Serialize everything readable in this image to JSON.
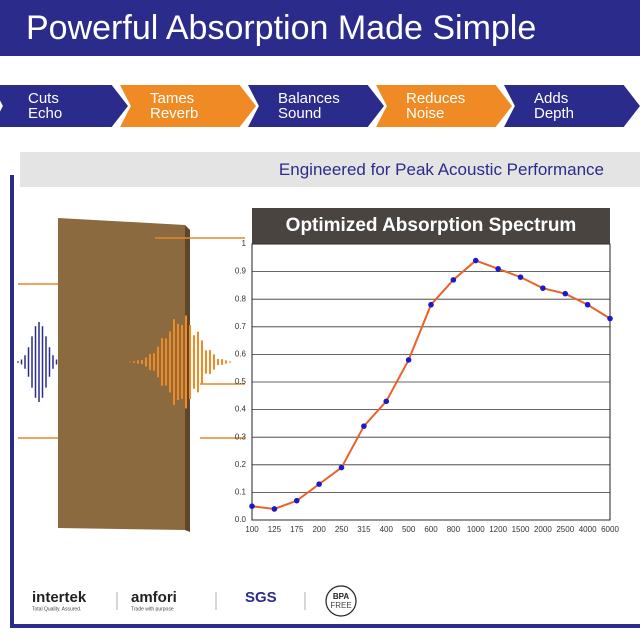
{
  "header": {
    "title": "Powerful Absorption Made Simple"
  },
  "features": [
    {
      "line1": "Cuts",
      "line2": "Echo"
    },
    {
      "line1": "Tames",
      "line2": "Reverb"
    },
    {
      "line1": "Balances",
      "line2": "Sound"
    },
    {
      "line1": "Reduces",
      "line2": "Noise"
    },
    {
      "line1": "Adds",
      "line2": "Depth"
    }
  ],
  "subtitle": "Engineered for Peak Acoustic Performance",
  "chart_data": {
    "type": "line",
    "title": "Optimized Absorption Spectrum",
    "categories": [
      "100",
      "125",
      "175",
      "200",
      "250",
      "315",
      "400",
      "500",
      "600",
      "800",
      "1000",
      "1200",
      "1500",
      "2000",
      "2500",
      "4000",
      "6000"
    ],
    "series": [
      {
        "color": "#e8622a",
        "marker_color": "#1a1acc",
        "values": [
          0.05,
          0.04,
          0.07,
          0.13,
          0.19,
          0.34,
          0.43,
          0.58,
          0.78,
          0.87,
          0.94,
          0.91,
          0.88,
          0.84,
          0.82,
          0.78,
          0.73
        ]
      }
    ],
    "ylim": [
      0,
      1
    ],
    "yticks": [
      {
        "value": 0,
        "label": "0.0"
      },
      0.1,
      0.2,
      0.3,
      0.4,
      0.5,
      0.6,
      0.7,
      0.8,
      0.9,
      1
    ],
    "grid": true
  },
  "logos": [
    {
      "name": "intertek",
      "tagline": "Total Quality. Assured."
    },
    {
      "name": "amfori",
      "tagline": "Trade with purpose"
    },
    {
      "name": "SGS"
    },
    {
      "name": "BPA",
      "tagline": "FREE"
    }
  ]
}
